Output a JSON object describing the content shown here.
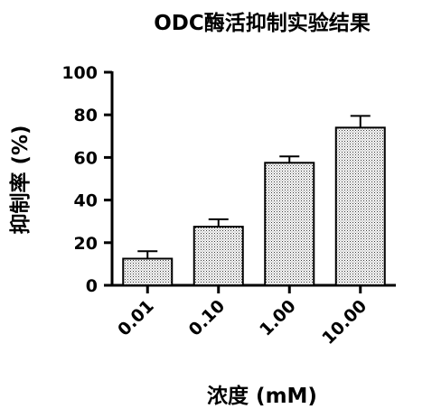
{
  "chart_data": {
    "type": "bar",
    "title": "ODC酶活抑制实验结果",
    "xlabel": "浓度 (mM)",
    "ylabel": "抑制率 (%)",
    "categories": [
      "0.01",
      "0.10",
      "1.00",
      "10.00"
    ],
    "values": [
      12.5,
      27.5,
      57.5,
      74.0
    ],
    "errors": [
      3.5,
      3.5,
      3.0,
      5.5
    ],
    "ylim": [
      0,
      100
    ],
    "yticks": [
      "0",
      "20",
      "40",
      "60",
      "80",
      "100"
    ],
    "bar_fill": "dotted-gray",
    "grid": false,
    "legend": "none"
  }
}
